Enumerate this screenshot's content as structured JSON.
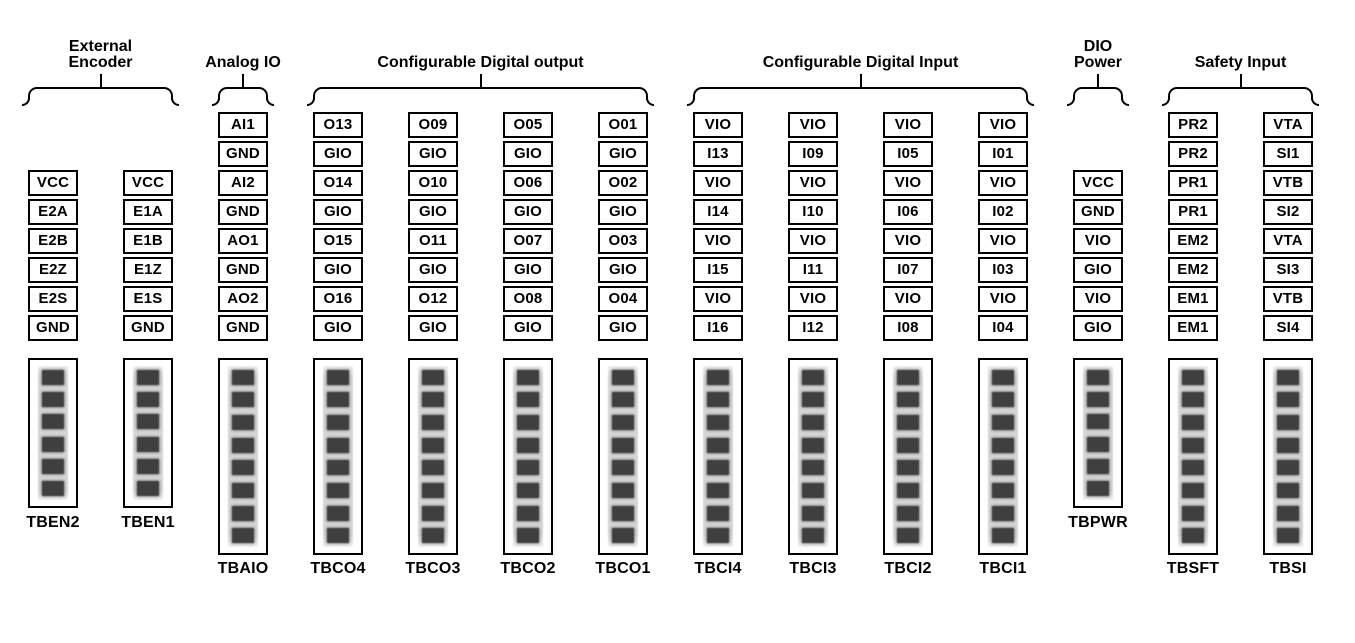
{
  "colors": {
    "background": "#ffffff",
    "line": "#000000",
    "text": "#000000",
    "cell_background": "#ffffff",
    "terminal_strip": "#d6d6d6",
    "terminal_screw": "#3f3f3f"
  },
  "groups": [
    {
      "id": "external-encoder",
      "label_lines": [
        "External",
        "Encoder"
      ],
      "columns": [
        {
          "name": "TBEN2",
          "terminals": 6,
          "pins": [
            "VCC",
            "E2A",
            "E2B",
            "E2Z",
            "E2S",
            "GND"
          ]
        },
        {
          "name": "TBEN1",
          "terminals": 6,
          "pins": [
            "VCC",
            "E1A",
            "E1B",
            "E1Z",
            "E1S",
            "GND"
          ]
        }
      ]
    },
    {
      "id": "analog-io",
      "label_lines": [
        "Analog IO"
      ],
      "columns": [
        {
          "name": "TBAIO",
          "terminals": 8,
          "pins": [
            "AI1",
            "GND",
            "AI2",
            "GND",
            "AO1",
            "GND",
            "AO2",
            "GND"
          ]
        }
      ]
    },
    {
      "id": "configurable-digital-output",
      "label_lines": [
        "Configurable Digital output"
      ],
      "columns": [
        {
          "name": "TBCO4",
          "terminals": 8,
          "pins": [
            "O13",
            "GIO",
            "O14",
            "GIO",
            "O15",
            "GIO",
            "O16",
            "GIO"
          ]
        },
        {
          "name": "TBCO3",
          "terminals": 8,
          "pins": [
            "O09",
            "GIO",
            "O10",
            "GIO",
            "O11",
            "GIO",
            "O12",
            "GIO"
          ]
        },
        {
          "name": "TBCO2",
          "terminals": 8,
          "pins": [
            "O05",
            "GIO",
            "O06",
            "GIO",
            "O07",
            "GIO",
            "O08",
            "GIO"
          ]
        },
        {
          "name": "TBCO1",
          "terminals": 8,
          "pins": [
            "O01",
            "GIO",
            "O02",
            "GIO",
            "O03",
            "GIO",
            "O04",
            "GIO"
          ]
        }
      ]
    },
    {
      "id": "configurable-digital-input",
      "label_lines": [
        "Configurable Digital Input"
      ],
      "columns": [
        {
          "name": "TBCI4",
          "terminals": 8,
          "pins": [
            "VIO",
            "I13",
            "VIO",
            "I14",
            "VIO",
            "I15",
            "VIO",
            "I16"
          ]
        },
        {
          "name": "TBCI3",
          "terminals": 8,
          "pins": [
            "VIO",
            "I09",
            "VIO",
            "I10",
            "VIO",
            "I11",
            "VIO",
            "I12"
          ]
        },
        {
          "name": "TBCI2",
          "terminals": 8,
          "pins": [
            "VIO",
            "I05",
            "VIO",
            "I06",
            "VIO",
            "I07",
            "VIO",
            "I08"
          ]
        },
        {
          "name": "TBCI1",
          "terminals": 8,
          "pins": [
            "VIO",
            "I01",
            "VIO",
            "I02",
            "VIO",
            "I03",
            "VIO",
            "I04"
          ]
        }
      ]
    },
    {
      "id": "dio-power",
      "label_lines": [
        "DIO",
        "Power"
      ],
      "columns": [
        {
          "name": "TBPWR",
          "terminals": 6,
          "pins": [
            "VCC",
            "GND",
            "VIO",
            "GIO",
            "VIO",
            "GIO"
          ]
        }
      ]
    },
    {
      "id": "safety-input",
      "label_lines": [
        "Safety Input"
      ],
      "columns": [
        {
          "name": "TBSFT",
          "terminals": 8,
          "pins": [
            "PR2",
            "PR2",
            "PR1",
            "PR1",
            "EM2",
            "EM2",
            "EM1",
            "EM1"
          ]
        },
        {
          "name": "TBSI",
          "terminals": 8,
          "pins": [
            "VTA",
            "SI1",
            "VTB",
            "SI2",
            "VTA",
            "SI3",
            "VTB",
            "SI4"
          ]
        }
      ]
    }
  ]
}
